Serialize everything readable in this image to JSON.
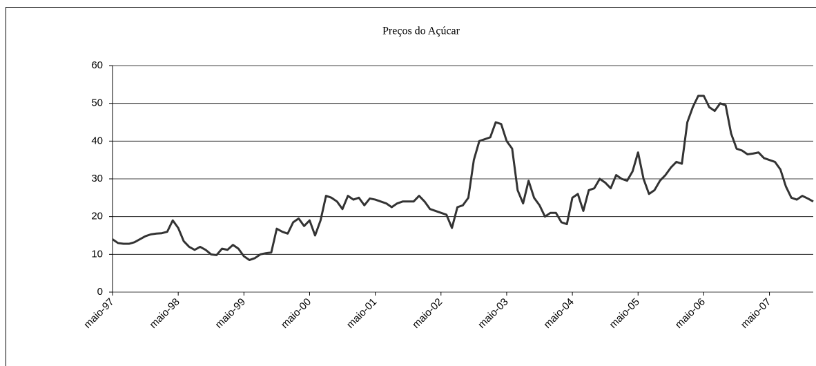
{
  "chart_data": {
    "type": "line",
    "title": "Preços do Açúcar",
    "categories": [
      "maio-97",
      null,
      null,
      null,
      null,
      null,
      null,
      null,
      null,
      null,
      null,
      null,
      "maio-98",
      null,
      null,
      null,
      null,
      null,
      null,
      null,
      null,
      null,
      null,
      null,
      "maio-99",
      null,
      null,
      null,
      null,
      null,
      null,
      null,
      null,
      null,
      null,
      null,
      "maio-00",
      null,
      null,
      null,
      null,
      null,
      null,
      null,
      null,
      null,
      null,
      null,
      "maio-01",
      null,
      null,
      null,
      null,
      null,
      null,
      null,
      null,
      null,
      null,
      null,
      "maio-02",
      null,
      null,
      null,
      null,
      null,
      null,
      null,
      null,
      null,
      null,
      null,
      "maio-03",
      null,
      null,
      null,
      null,
      null,
      null,
      null,
      null,
      null,
      null,
      null,
      "maio-04",
      null,
      null,
      null,
      null,
      null,
      null,
      null,
      null,
      null,
      null,
      null,
      "maio-05",
      null,
      null,
      null,
      null,
      null,
      null,
      null,
      null,
      null,
      null,
      null,
      "maio-06",
      null,
      null,
      null,
      null,
      null,
      null,
      null,
      null,
      null,
      null,
      null,
      "maio-07",
      null,
      null,
      null,
      null,
      null,
      null,
      null,
      null
    ],
    "values": [
      14,
      13,
      12.8,
      12.8,
      13.2,
      14,
      14.8,
      15.3,
      15.5,
      15.6,
      16,
      19,
      17,
      13.5,
      12,
      11.2,
      12,
      11.2,
      10,
      9.8,
      11.5,
      11.2,
      12.5,
      11.5,
      9.5,
      8.5,
      9,
      10,
      10.3,
      10.5,
      16.8,
      16,
      15.5,
      18.5,
      19.5,
      17.5,
      19,
      15,
      19,
      25.5,
      25,
      24,
      22,
      25.5,
      24.5,
      25,
      23,
      24.8,
      24.5,
      24,
      23.5,
      22.5,
      23.5,
      24,
      24,
      24,
      25.5,
      24,
      22,
      21.5,
      21,
      20.5,
      17,
      22.5,
      23,
      25,
      35,
      40,
      40.5,
      41,
      45,
      44.5,
      40,
      38,
      27,
      23.5,
      29.5,
      25,
      23,
      20,
      21,
      21,
      18.5,
      18,
      25,
      26,
      21.5,
      27,
      27.5,
      30,
      29,
      27.5,
      31,
      30,
      29.5,
      32,
      37,
      30,
      26,
      27,
      29.5,
      31,
      33,
      34.5,
      34,
      45,
      49,
      52,
      52,
      49,
      48,
      50,
      49.5,
      42,
      38,
      37.5,
      36.5,
      36.7,
      37,
      35.5,
      35,
      34.5,
      32.5,
      28,
      25,
      24.5,
      25.5,
      24.8,
      24
    ],
    "color": "#333333",
    "ylim": [
      0,
      60
    ],
    "yticks": [
      0,
      10,
      20,
      30,
      40,
      50,
      60
    ],
    "grid": true
  }
}
